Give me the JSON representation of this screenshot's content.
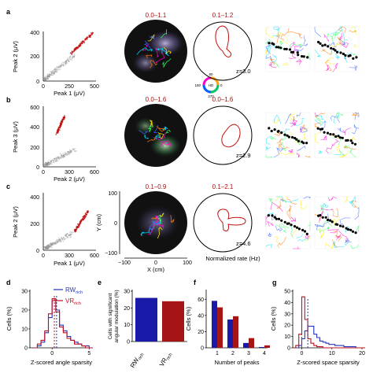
{
  "rows": [
    {
      "letter": "a",
      "scatter": {
        "xlabel": "Peak 1 (μV)",
        "ylabel": "Peak 2 (μV)",
        "xticks": [
          "0",
          "250",
          "500"
        ],
        "yticks": [
          "0",
          "200",
          "400"
        ]
      },
      "ratemap_label": "0.0–1.1",
      "polar_label": "0.1–1.2",
      "z_label": "z=3.0"
    },
    {
      "letter": "b",
      "scatter": {
        "xlabel": "Peak 2 (μV)",
        "ylabel": "Peak 3 (μV)",
        "xticks": [
          "0",
          "300",
          "600"
        ],
        "yticks": [
          "0",
          "200",
          "400",
          "600"
        ]
      },
      "ratemap_label": "0.0–1.6",
      "polar_label": "0.0–1.6",
      "z_label": "z=2.9"
    },
    {
      "letter": "c",
      "scatter": {
        "xlabel": "Peak 1 (μV)",
        "ylabel": "Peak 2 (μV)",
        "xticks": [
          "0",
          "300",
          "600"
        ],
        "yticks": [
          "0",
          "200",
          "400"
        ]
      },
      "ratemap_label": "0.1–0.9",
      "polar_label": "0.1–2.1",
      "z_label": "z=4.6",
      "ratemap_xlabel": "X (cm)",
      "ratemap_ylabel": "Y (cm)",
      "ratemap_xticks": [
        "−100",
        "0",
        "100"
      ],
      "ratemap_yticks": [
        "−100",
        "0",
        "100"
      ],
      "polar_xlabel": "Normalized rate (Hz)"
    }
  ],
  "hd_wheel": {
    "label": "HD",
    "ticks": [
      "90",
      "180",
      "0",
      "270"
    ]
  },
  "panel_d": {
    "letter": "d",
    "ylabel": "Cells (%)",
    "xlabel": "Z-scored angle sparsity",
    "legend": [
      {
        "main": "RW",
        "sub": "rich",
        "color": "#2233bb"
      },
      {
        "main": "VR",
        "sub": "rich",
        "color": "#bb1122"
      }
    ],
    "chart_data": {
      "type": "bar",
      "x": [
        -2.5,
        -2,
        -1.5,
        -1,
        -0.5,
        0,
        0.5,
        1,
        1.5,
        2,
        2.5,
        3,
        3.5,
        4,
        4.5,
        5
      ],
      "series": [
        {
          "name": "RW rich",
          "values": [
            0,
            1,
            3,
            8,
            16,
            25,
            20,
            12,
            9,
            6,
            4,
            3,
            2,
            1,
            1,
            0
          ]
        },
        {
          "name": "VR rich",
          "values": [
            0,
            2,
            4,
            9,
            18,
            26,
            19,
            11,
            8,
            5,
            4,
            2,
            2,
            1,
            0,
            0
          ]
        }
      ],
      "xticks": [
        "0",
        "5"
      ],
      "yticks": [
        "0",
        "10",
        "20",
        "30"
      ],
      "xlim": [
        -3,
        5.5
      ],
      "ylim": [
        0,
        30
      ]
    }
  },
  "panel_e": {
    "letter": "e",
    "ylabel": "Cells with significant angular modulation (%)",
    "chart_data": {
      "type": "bar",
      "categories": [
        "RW rich",
        "VR rich"
      ],
      "values": [
        26,
        24
      ],
      "colors": [
        "#1a1aa8",
        "#a51515"
      ],
      "yticks": [
        "0",
        "10",
        "20",
        "30"
      ],
      "ylim": [
        0,
        30
      ]
    },
    "cat_labels": [
      {
        "main": "RW",
        "sub": "rich"
      },
      {
        "main": "VR",
        "sub": "rich"
      }
    ]
  },
  "panel_f": {
    "letter": "f",
    "ylabel": "Cells (%)",
    "xlabel": "Number of peaks",
    "chart_data": {
      "type": "bar",
      "categories": [
        "1",
        "2",
        "3",
        "4"
      ],
      "series": [
        {
          "name": "RW rich",
          "values": [
            58,
            35,
            6,
            1
          ],
          "color": "#1a1aa8"
        },
        {
          "name": "VR rich",
          "values": [
            50,
            39,
            12,
            3
          ],
          "color": "#a51515"
        }
      ],
      "yticks": [
        "0",
        "20",
        "40",
        "60"
      ],
      "ylim": [
        0,
        70
      ]
    }
  },
  "panel_g": {
    "letter": "g",
    "ylabel": "Cells (%)",
    "xlabel": "Z-scored space sparsity",
    "chart_data": {
      "type": "line",
      "x": [
        -3,
        -2,
        -1,
        0,
        1,
        2,
        3,
        4,
        5,
        6,
        7,
        8,
        9,
        10,
        11,
        12,
        13,
        14,
        15,
        16,
        17,
        18,
        19,
        20
      ],
      "series": [
        {
          "name": "RW rich",
          "values": [
            0,
            0,
            2,
            8,
            15,
            19,
            19,
            12,
            9,
            6,
            5,
            4,
            3,
            3,
            2,
            2,
            2,
            1,
            1,
            1,
            1,
            0,
            0,
            0
          ]
        },
        {
          "name": "VR rich",
          "values": [
            0,
            2,
            12,
            45,
            25,
            8,
            4,
            2,
            1,
            1,
            0,
            0,
            0,
            0,
            0,
            0,
            0,
            0,
            0,
            0,
            0,
            0,
            0,
            0
          ]
        }
      ],
      "xticks": [
        "0",
        "10",
        "20"
      ],
      "yticks": [
        "0",
        "10",
        "20",
        "30",
        "40",
        "50"
      ],
      "xlim": [
        -3,
        20
      ],
      "ylim": [
        0,
        50
      ]
    }
  }
}
